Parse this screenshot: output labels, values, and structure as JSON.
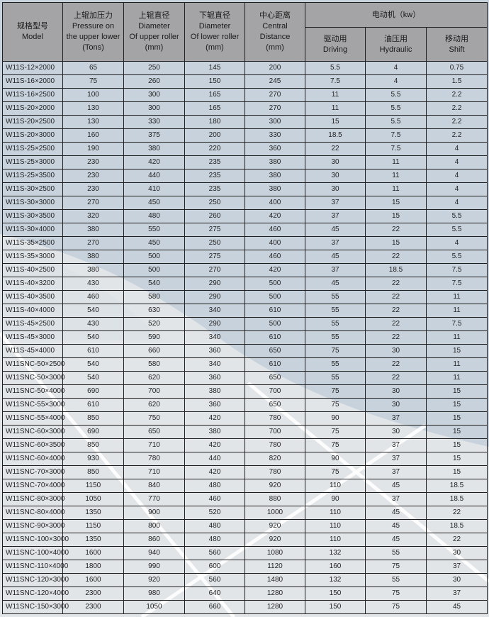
{
  "header": {
    "model": {
      "cn": "规格型号",
      "en": "Model"
    },
    "pressure": {
      "cn": "上辊加压力",
      "en1": "Pressure on",
      "en2": "the upper lower",
      "unit": "(Tons)"
    },
    "upper_dia": {
      "cn": "上辊直径",
      "en1": "Diameter",
      "en2": "Of upper roller",
      "unit": "(mm)"
    },
    "lower_dia": {
      "cn": "下辊直径",
      "en1": "Diameter",
      "en2": "Of lower roller",
      "unit": "(mm)"
    },
    "center": {
      "cn": "中心距离",
      "en1": "Central",
      "en2": "Distance",
      "unit": "(mm)"
    },
    "motor": "电动机（kw）",
    "driving": {
      "cn": "驱动用",
      "en": "Driving"
    },
    "hydraulic": {
      "cn": "油压用",
      "en": "Hydraulic"
    },
    "shift": {
      "cn": "移动用",
      "en": "Shift"
    }
  },
  "rows": [
    [
      "W11S-12×2000",
      "65",
      "250",
      "145",
      "200",
      "5.5",
      "4",
      "0.75"
    ],
    [
      "W11S-16×2000",
      "75",
      "260",
      "150",
      "245",
      "7.5",
      "4",
      "1.5"
    ],
    [
      "W11S-16×2500",
      "100",
      "300",
      "165",
      "270",
      "11",
      "5.5",
      "2.2"
    ],
    [
      "W11S-20×2000",
      "130",
      "300",
      "165",
      "270",
      "11",
      "5.5",
      "2.2"
    ],
    [
      "W11S-20×2500",
      "130",
      "330",
      "180",
      "300",
      "15",
      "5.5",
      "2.2"
    ],
    [
      "W11S-20×3000",
      "160",
      "375",
      "200",
      "330",
      "18.5",
      "7.5",
      "2.2"
    ],
    [
      "W11S-25×2500",
      "190",
      "380",
      "220",
      "360",
      "22",
      "7.5",
      "4"
    ],
    [
      "W11S-25×3000",
      "230",
      "420",
      "235",
      "380",
      "30",
      "11",
      "4"
    ],
    [
      "W11S-25×3500",
      "230",
      "440",
      "235",
      "380",
      "30",
      "11",
      "4"
    ],
    [
      "W11S-30×2500",
      "230",
      "410",
      "235",
      "380",
      "30",
      "11",
      "4"
    ],
    [
      "W11S-30×3000",
      "270",
      "450",
      "250",
      "400",
      "37",
      "15",
      "4"
    ],
    [
      "W11S-30×3500",
      "320",
      "480",
      "260",
      "420",
      "37",
      "15",
      "5.5"
    ],
    [
      "W11S-30×4000",
      "380",
      "550",
      "275",
      "460",
      "45",
      "22",
      "5.5"
    ],
    [
      "W11S-35×2500",
      "270",
      "450",
      "250",
      "400",
      "37",
      "15",
      "4"
    ],
    [
      "W11S-35×3000",
      "380",
      "500",
      "275",
      "460",
      "45",
      "22",
      "5.5"
    ],
    [
      "W11S-40×2500",
      "380",
      "500",
      "270",
      "420",
      "37",
      "18.5",
      "7.5"
    ],
    [
      "W11S-40×3200",
      "430",
      "540",
      "290",
      "500",
      "45",
      "22",
      "7.5"
    ],
    [
      "W11S-40×3500",
      "460",
      "580",
      "290",
      "500",
      "55",
      "22",
      "11"
    ],
    [
      "W11S-40×4000",
      "540",
      "630",
      "340",
      "610",
      "55",
      "22",
      "11"
    ],
    [
      "W11S-45×2500",
      "430",
      "520",
      "290",
      "500",
      "55",
      "22",
      "7.5"
    ],
    [
      "W11S-45×3000",
      "540",
      "590",
      "340",
      "610",
      "55",
      "22",
      "11"
    ],
    [
      "W11S-45×4000",
      "610",
      "660",
      "360",
      "650",
      "75",
      "30",
      "15"
    ],
    [
      "W11SNC-50×2500",
      "540",
      "580",
      "340",
      "610",
      "55",
      "22",
      "11"
    ],
    [
      "W11SNC-50×3000",
      "540",
      "620",
      "360",
      "650",
      "55",
      "22",
      "11"
    ],
    [
      "W11SNC-50×4000",
      "690",
      "700",
      "380",
      "700",
      "75",
      "30",
      "15"
    ],
    [
      "W11SNC-55×3000",
      "610",
      "620",
      "360",
      "650",
      "75",
      "30",
      "15"
    ],
    [
      "W11SNC-55×4000",
      "850",
      "750",
      "420",
      "780",
      "90",
      "37",
      "15"
    ],
    [
      "W11SNC-60×3000",
      "690",
      "650",
      "380",
      "700",
      "75",
      "30",
      "15"
    ],
    [
      "W11SNC-60×3500",
      "850",
      "710",
      "420",
      "780",
      "75",
      "37",
      "15"
    ],
    [
      "W11SNC-60×4000",
      "930",
      "780",
      "440",
      "820",
      "90",
      "37",
      "15"
    ],
    [
      "W11SNC-70×3000",
      "850",
      "710",
      "420",
      "780",
      "75",
      "37",
      "15"
    ],
    [
      "W11SNC-70×4000",
      "1150",
      "840",
      "480",
      "920",
      "110",
      "45",
      "18.5"
    ],
    [
      "W11SNC-80×3000",
      "1050",
      "770",
      "460",
      "880",
      "90",
      "37",
      "18.5"
    ],
    [
      "W11SNC-80×4000",
      "1350",
      "900",
      "520",
      "1000",
      "110",
      "45",
      "22"
    ],
    [
      "W11SNC-90×3000",
      "1150",
      "800",
      "480",
      "920",
      "110",
      "45",
      "18.5"
    ],
    [
      "W11SNC-100×3000",
      "1350",
      "860",
      "480",
      "920",
      "110",
      "45",
      "22"
    ],
    [
      "W11SNC-100×4000",
      "1600",
      "940",
      "560",
      "1080",
      "132",
      "55",
      "30"
    ],
    [
      "W11SNC-110×4000",
      "1800",
      "990",
      "600",
      "1120",
      "160",
      "75",
      "37"
    ],
    [
      "W11SNC-120×3000",
      "1600",
      "920",
      "560",
      "1480",
      "132",
      "55",
      "30"
    ],
    [
      "W11SNC-120×4000",
      "2300",
      "980",
      "640",
      "1280",
      "150",
      "75",
      "37"
    ],
    [
      "W11SNC-150×3000",
      "2300",
      "1050",
      "660",
      "1280",
      "150",
      "75",
      "45"
    ]
  ]
}
